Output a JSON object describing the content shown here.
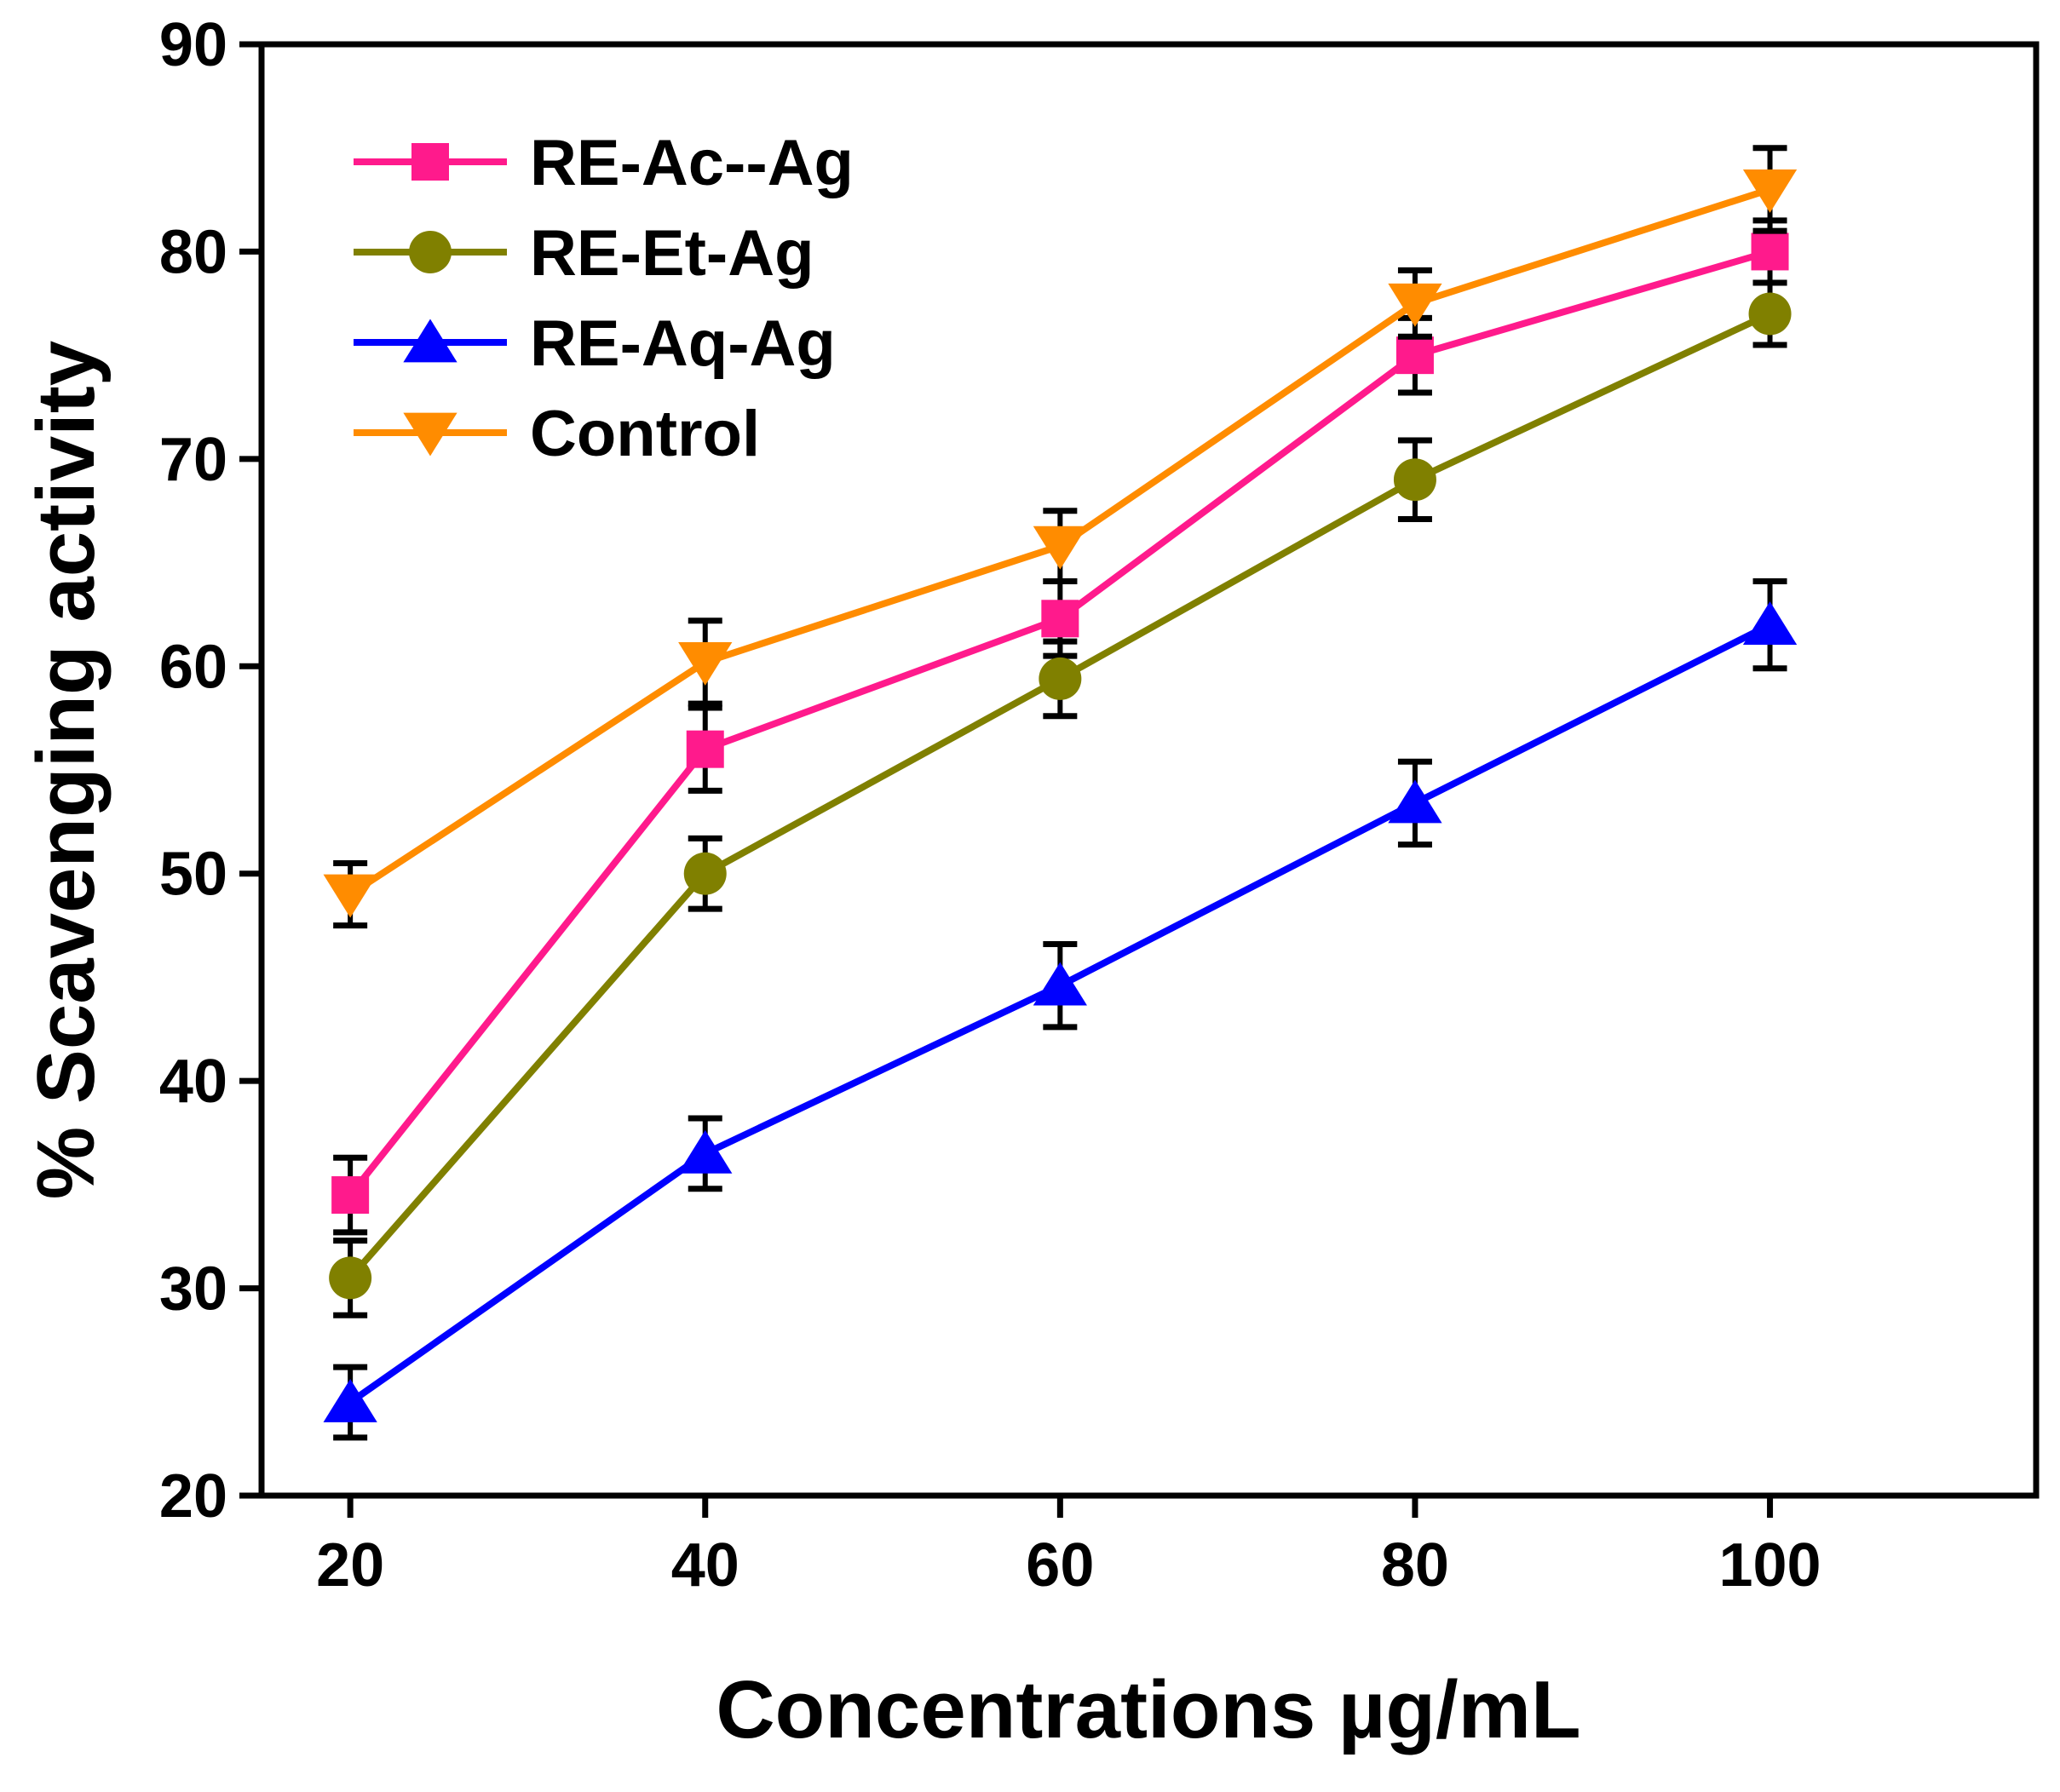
{
  "chart_data": {
    "type": "line",
    "title": "",
    "xlabel": "Concentrations µg/mL",
    "ylabel": "% Scavenging activity",
    "x": [
      20,
      40,
      60,
      80,
      100
    ],
    "xlim": [
      15,
      115
    ],
    "ylim": [
      20,
      90
    ],
    "xticks": [
      20,
      40,
      60,
      80,
      100
    ],
    "yticks": [
      20,
      30,
      40,
      50,
      60,
      70,
      80,
      90
    ],
    "grid": false,
    "legend_position": "top-left",
    "series": [
      {
        "name": "RE-Ac--Ag",
        "color": "#ff1a8c",
        "marker": "square",
        "values": [
          34.5,
          56.0,
          62.3,
          75.0,
          80.0
        ],
        "errors": [
          1.8,
          2.0,
          1.8,
          1.8,
          1.5
        ]
      },
      {
        "name": "RE-Et-Ag",
        "color": "#808000",
        "marker": "circle",
        "values": [
          30.5,
          50.0,
          59.4,
          69.0,
          77.0
        ],
        "errors": [
          1.8,
          1.7,
          1.8,
          1.9,
          1.5
        ]
      },
      {
        "name": "RE-Aq-Ag",
        "color": "#0000ff",
        "marker": "triangle-up",
        "values": [
          24.5,
          36.5,
          44.6,
          53.4,
          62.0
        ],
        "errors": [
          1.7,
          1.7,
          2.0,
          2.0,
          2.1
        ]
      },
      {
        "name": "Control",
        "color": "#ff8c00",
        "marker": "triangle-down",
        "values": [
          49.0,
          60.2,
          65.8,
          77.5,
          83.0
        ],
        "errors": [
          1.5,
          2.0,
          1.7,
          1.6,
          2.0
        ]
      }
    ]
  }
}
